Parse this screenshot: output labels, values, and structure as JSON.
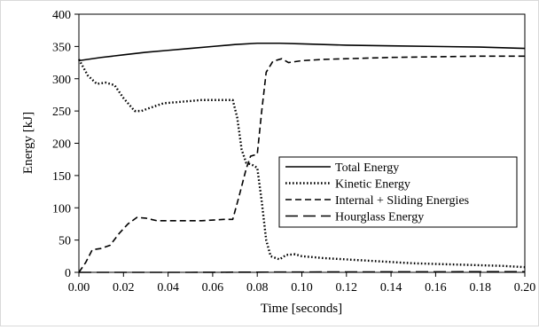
{
  "chart_data": {
    "type": "line",
    "title": "",
    "xlabel": "Time [seconds]",
    "ylabel": "Energy  [kJ]",
    "xlim": [
      0,
      0.2
    ],
    "ylim": [
      0,
      400
    ],
    "x_ticks": [
      "0.00",
      "0.02",
      "0.04",
      "0.06",
      "0.08",
      "0.10",
      "0.12",
      "0.14",
      "0.16",
      "0.18",
      "0.20"
    ],
    "y_ticks": [
      "0",
      "50",
      "100",
      "150",
      "200",
      "250",
      "300",
      "350",
      "400"
    ],
    "grid": false,
    "legend_position": "center-right",
    "series": [
      {
        "name": "Total Energy",
        "dash": "solid",
        "points": [
          [
            0,
            328
          ],
          [
            0.01,
            333
          ],
          [
            0.02,
            337
          ],
          [
            0.03,
            341
          ],
          [
            0.04,
            344
          ],
          [
            0.05,
            347
          ],
          [
            0.06,
            350
          ],
          [
            0.07,
            353
          ],
          [
            0.08,
            355
          ],
          [
            0.09,
            355
          ],
          [
            0.1,
            354
          ],
          [
            0.12,
            352
          ],
          [
            0.14,
            351
          ],
          [
            0.16,
            350
          ],
          [
            0.18,
            349
          ],
          [
            0.2,
            347
          ]
        ]
      },
      {
        "name": "Kinetic Energy",
        "dash": "dotted",
        "points": [
          [
            0,
            330
          ],
          [
            0.004,
            305
          ],
          [
            0.008,
            292
          ],
          [
            0.012,
            294
          ],
          [
            0.016,
            290
          ],
          [
            0.02,
            270
          ],
          [
            0.025,
            250
          ],
          [
            0.028,
            250
          ],
          [
            0.032,
            255
          ],
          [
            0.038,
            262
          ],
          [
            0.045,
            264
          ],
          [
            0.055,
            267
          ],
          [
            0.065,
            267
          ],
          [
            0.069,
            267
          ],
          [
            0.071,
            240
          ],
          [
            0.073,
            190
          ],
          [
            0.075,
            170
          ],
          [
            0.078,
            166
          ],
          [
            0.08,
            162
          ],
          [
            0.082,
            110
          ],
          [
            0.084,
            50
          ],
          [
            0.086,
            25
          ],
          [
            0.09,
            20
          ],
          [
            0.093,
            27
          ],
          [
            0.097,
            28
          ],
          [
            0.1,
            25
          ],
          [
            0.11,
            22
          ],
          [
            0.12,
            20
          ],
          [
            0.13,
            18
          ],
          [
            0.14,
            16
          ],
          [
            0.15,
            14
          ],
          [
            0.16,
            13
          ],
          [
            0.17,
            12
          ],
          [
            0.18,
            11
          ],
          [
            0.19,
            10
          ],
          [
            0.2,
            8
          ]
        ]
      },
      {
        "name": "Internal + Sliding Energies",
        "dash": "dashed",
        "points": [
          [
            0,
            0
          ],
          [
            0.003,
            15
          ],
          [
            0.006,
            35
          ],
          [
            0.01,
            37
          ],
          [
            0.014,
            42
          ],
          [
            0.018,
            60
          ],
          [
            0.022,
            75
          ],
          [
            0.026,
            85
          ],
          [
            0.03,
            84
          ],
          [
            0.035,
            80
          ],
          [
            0.045,
            80
          ],
          [
            0.055,
            80
          ],
          [
            0.065,
            82
          ],
          [
            0.069,
            82
          ],
          [
            0.072,
            120
          ],
          [
            0.075,
            160
          ],
          [
            0.077,
            180
          ],
          [
            0.08,
            183
          ],
          [
            0.082,
            250
          ],
          [
            0.084,
            310
          ],
          [
            0.087,
            327
          ],
          [
            0.091,
            331
          ],
          [
            0.094,
            325
          ],
          [
            0.1,
            328
          ],
          [
            0.11,
            330
          ],
          [
            0.12,
            331
          ],
          [
            0.13,
            332
          ],
          [
            0.14,
            333
          ],
          [
            0.16,
            334
          ],
          [
            0.18,
            335
          ],
          [
            0.2,
            335
          ]
        ]
      },
      {
        "name": "Hourglass Energy",
        "dash": "longdash",
        "points": [
          [
            0,
            0
          ],
          [
            0.05,
            0
          ],
          [
            0.1,
            0.5
          ],
          [
            0.15,
            0.8
          ],
          [
            0.2,
            1
          ]
        ]
      }
    ]
  }
}
